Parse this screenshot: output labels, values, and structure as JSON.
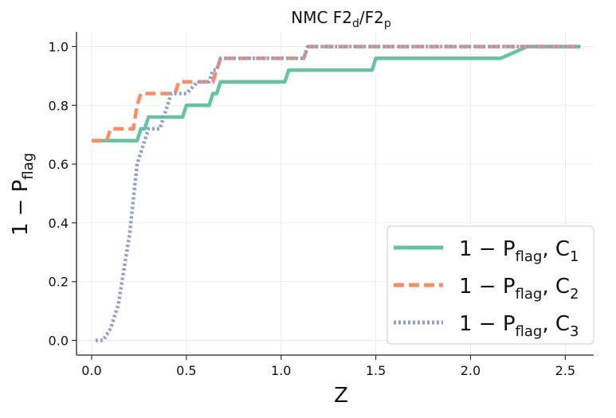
{
  "chart_data": {
    "type": "line",
    "title": {
      "main": "NMC F2",
      "sub1": "d",
      "sep": "/F2",
      "sub2": "p"
    },
    "xlabel": "Z",
    "ylabel": {
      "main": "1 − P",
      "sub": "flag"
    },
    "xlim": [
      -0.08,
      2.65
    ],
    "ylim": [
      -0.05,
      1.05
    ],
    "xticks": [
      0.0,
      0.5,
      1.0,
      1.5,
      2.0,
      2.5
    ],
    "xtick_labels": [
      "0.0",
      "0.5",
      "1.0",
      "1.5",
      "2.0",
      "2.5"
    ],
    "yticks": [
      0.0,
      0.2,
      0.4,
      0.6,
      0.8,
      1.0
    ],
    "ytick_labels": [
      "0.0",
      "0.2",
      "0.4",
      "0.6",
      "0.8",
      "1.0"
    ],
    "grid": true,
    "legend_position": "bottom-right",
    "series": [
      {
        "legend_main": "1 − P",
        "legend_sub": "flag",
        "legend_suffix": ", C",
        "legend_index": "1",
        "color": "#66c2a5",
        "dash": "solid",
        "x": [
          0.0,
          0.24,
          0.26,
          0.28,
          0.3,
          0.48,
          0.5,
          0.62,
          0.64,
          0.66,
          0.68,
          0.7,
          1.02,
          1.04,
          1.48,
          1.5,
          2.16,
          2.3,
          2.58
        ],
        "y": [
          0.68,
          0.68,
          0.72,
          0.72,
          0.76,
          0.76,
          0.8,
          0.8,
          0.84,
          0.84,
          0.88,
          0.88,
          0.88,
          0.92,
          0.92,
          0.96,
          0.96,
          1.0,
          1.0
        ]
      },
      {
        "legend_main": "1 − P",
        "legend_sub": "flag",
        "legend_suffix": ", C",
        "legend_index": "2",
        "color": "#fc8d62",
        "dash": "dashed",
        "x": [
          0.0,
          0.08,
          0.1,
          0.22,
          0.24,
          0.26,
          0.28,
          0.44,
          0.46,
          0.62,
          0.64,
          0.66,
          0.68,
          1.12,
          1.14,
          2.58
        ],
        "y": [
          0.68,
          0.68,
          0.72,
          0.72,
          0.8,
          0.84,
          0.84,
          0.84,
          0.88,
          0.88,
          0.88,
          0.92,
          0.96,
          0.96,
          1.0,
          1.0
        ]
      },
      {
        "legend_main": "1 − P",
        "legend_sub": "flag",
        "legend_suffix": ", C",
        "legend_index": "3",
        "color": "#8da0cb",
        "dash": "dotted",
        "x": [
          0.02,
          0.06,
          0.1,
          0.12,
          0.14,
          0.16,
          0.18,
          0.2,
          0.22,
          0.24,
          0.26,
          0.28,
          0.3,
          0.36,
          0.38,
          0.4,
          0.42,
          0.44,
          0.5,
          0.56,
          0.6,
          0.62,
          0.64,
          0.66,
          0.68,
          0.7,
          1.12,
          1.14,
          2.58
        ],
        "y": [
          0.0,
          0.0,
          0.04,
          0.08,
          0.12,
          0.2,
          0.28,
          0.36,
          0.48,
          0.6,
          0.64,
          0.68,
          0.72,
          0.72,
          0.76,
          0.8,
          0.84,
          0.84,
          0.84,
          0.88,
          0.88,
          0.88,
          0.92,
          0.92,
          0.96,
          0.96,
          0.96,
          1.0,
          1.0
        ]
      }
    ]
  }
}
